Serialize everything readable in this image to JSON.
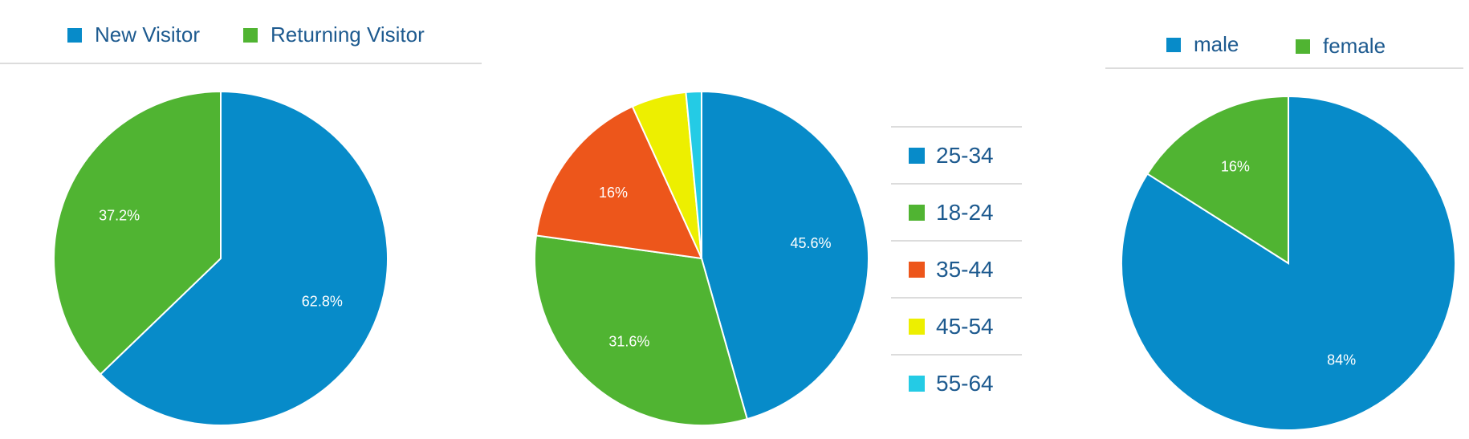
{
  "chart_data": [
    {
      "type": "pie",
      "legend_position": "top",
      "series": [
        {
          "name": "New Visitor",
          "value": 62.8,
          "label": "62.8%",
          "color": "#078bc9"
        },
        {
          "name": "Returning Visitor",
          "value": 37.2,
          "label": "37.2%",
          "color": "#50b432"
        }
      ]
    },
    {
      "type": "pie",
      "legend_position": "right",
      "series": [
        {
          "name": "25-34",
          "value": 45.6,
          "label": "45.6%",
          "color": "#078bc9"
        },
        {
          "name": "18-24",
          "value": 31.6,
          "label": "31.6%",
          "color": "#50b432"
        },
        {
          "name": "35-44",
          "value": 16,
          "label": "16%",
          "color": "#ed561b"
        },
        {
          "name": "45-54",
          "value": 5.3,
          "label": "",
          "color": "#edef00"
        },
        {
          "name": "55-64",
          "value": 1.5,
          "label": "",
          "color": "#24cbe5"
        }
      ]
    },
    {
      "type": "pie",
      "legend_position": "top",
      "series": [
        {
          "name": "male",
          "value": 84,
          "label": "84%",
          "color": "#078bc9"
        },
        {
          "name": "female",
          "value": 16,
          "label": "16%",
          "color": "#50b432"
        }
      ]
    }
  ]
}
